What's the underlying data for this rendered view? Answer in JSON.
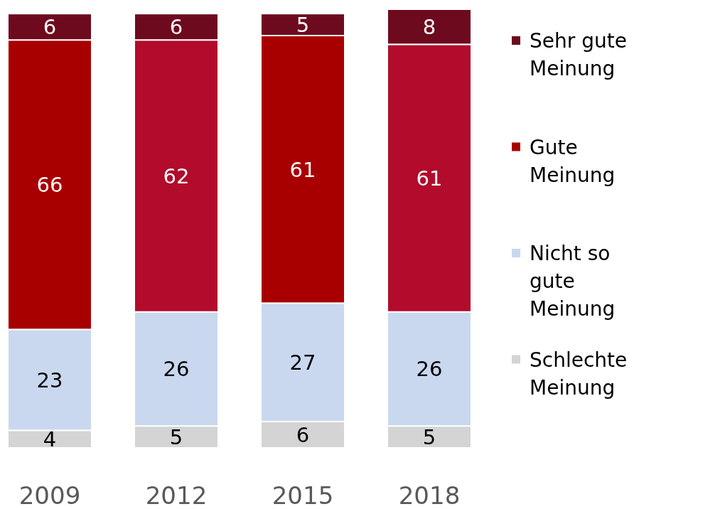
{
  "chart_data": {
    "type": "bar",
    "stacked": true,
    "data_labels": true,
    "legend": "right",
    "categories": [
      "2009",
      "2012",
      "2015",
      "2018"
    ],
    "series": [
      {
        "name": "Schlechte Meinung",
        "color": "#d4d4d4",
        "values": [
          4,
          5,
          6,
          5
        ]
      },
      {
        "name": "Nicht so gute Meinung",
        "color": "#c9d8ef",
        "values": [
          23,
          26,
          27,
          26
        ]
      },
      {
        "name": "Gute Meinung",
        "color": "#a80000",
        "colors": [
          "#a80000",
          "#b20b2b",
          "#a80000",
          "#b20b2b"
        ],
        "values": [
          66,
          62,
          61,
          61
        ]
      },
      {
        "name": "Sehr gute Meinung",
        "color": "#6e0a1e",
        "values": [
          6,
          6,
          5,
          8
        ]
      }
    ]
  }
}
